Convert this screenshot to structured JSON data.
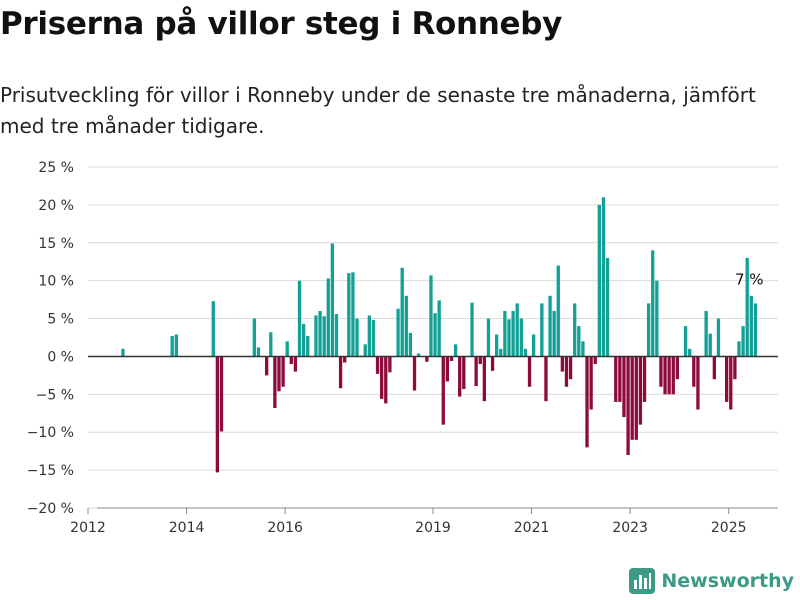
{
  "title": "Priserna på villor steg i Ronneby",
  "subtitle": "Prisutveckling för villor i Ronneby under de senaste tre månaderna, jämfört med tre månader tidigare.",
  "brand": "Newsworthy",
  "colors": {
    "positive": "#13a195",
    "negative": "#8c0a3c",
    "grid": "#dcdcdc",
    "zero": "#333333"
  },
  "chart_data": {
    "type": "bar",
    "x_unit": "month",
    "y_unit": "%",
    "ylim": [
      -20,
      25
    ],
    "yticks": [
      -20,
      -15,
      -10,
      -5,
      0,
      5,
      10,
      15,
      20,
      25
    ],
    "ytick_labels": [
      "−20 %",
      "−15 %",
      "−10 %",
      "−5 %",
      "0 %",
      "5 %",
      "10 %",
      "15 %",
      "20 %",
      "25 %"
    ],
    "xlim": [
      "2012-01",
      "2025-12"
    ],
    "xticks": [
      "2012-01",
      "2014-01",
      "2016-01",
      "2019-01",
      "2021-01",
      "2023-01",
      "2025-01"
    ],
    "xtick_labels": [
      "2012",
      "2014",
      "2016",
      "2019",
      "2021",
      "2023",
      "2025"
    ],
    "grid": true,
    "annotation": {
      "x": "2025-04",
      "text": "7 %"
    },
    "series": [
      {
        "values": [
          [
            "2012-09",
            1
          ],
          [
            "2013-09",
            2.7
          ],
          [
            "2013-10",
            2.9
          ],
          [
            "2014-07",
            7.3
          ],
          [
            "2014-08",
            -15.3
          ],
          [
            "2014-09",
            -9.9
          ],
          [
            "2015-05",
            5
          ],
          [
            "2015-06",
            1.2
          ],
          [
            "2015-08",
            -2.5
          ],
          [
            "2015-09",
            3.2
          ],
          [
            "2015-10",
            -6.8
          ],
          [
            "2015-11",
            -4.6
          ],
          [
            "2015-12",
            -4
          ],
          [
            "2016-01",
            2
          ],
          [
            "2016-02",
            -1
          ],
          [
            "2016-03",
            -2
          ],
          [
            "2016-04",
            10
          ],
          [
            "2016-05",
            4.3
          ],
          [
            "2016-06",
            2.7
          ],
          [
            "2016-08",
            5.4
          ],
          [
            "2016-09",
            6
          ],
          [
            "2016-10",
            5.3
          ],
          [
            "2016-11",
            10.3
          ],
          [
            "2016-12",
            14.9
          ],
          [
            "2017-01",
            5.6
          ],
          [
            "2017-02",
            -4.2
          ],
          [
            "2017-03",
            -0.8
          ],
          [
            "2017-04",
            11
          ],
          [
            "2017-05",
            11.1
          ],
          [
            "2017-06",
            5
          ],
          [
            "2017-07",
            0.1
          ],
          [
            "2017-08",
            1.6
          ],
          [
            "2017-09",
            5.4
          ],
          [
            "2017-10",
            4.8
          ],
          [
            "2017-11",
            -2.3
          ],
          [
            "2017-12",
            -5.6
          ],
          [
            "2018-01",
            -6.2
          ],
          [
            "2018-02",
            -2.1
          ],
          [
            "2018-04",
            6.3
          ],
          [
            "2018-05",
            11.7
          ],
          [
            "2018-06",
            8
          ],
          [
            "2018-07",
            3.1
          ],
          [
            "2018-08",
            -4.5
          ],
          [
            "2018-09",
            0.4
          ],
          [
            "2018-11",
            -0.7
          ],
          [
            "2018-12",
            10.7
          ],
          [
            "2019-01",
            5.7
          ],
          [
            "2019-02",
            7.4
          ],
          [
            "2019-03",
            -9
          ],
          [
            "2019-04",
            -3.3
          ],
          [
            "2019-05",
            -0.6
          ],
          [
            "2019-06",
            1.6
          ],
          [
            "2019-07",
            -5.3
          ],
          [
            "2019-08",
            -4.3
          ],
          [
            "2019-10",
            7.1
          ],
          [
            "2019-11",
            -3.9
          ],
          [
            "2019-12",
            -1
          ],
          [
            "2020-01",
            -5.9
          ],
          [
            "2020-02",
            5
          ],
          [
            "2020-03",
            -1.9
          ],
          [
            "2020-04",
            2.9
          ],
          [
            "2020-05",
            1
          ],
          [
            "2020-06",
            6
          ],
          [
            "2020-07",
            4.9
          ],
          [
            "2020-08",
            6
          ],
          [
            "2020-09",
            7
          ],
          [
            "2020-10",
            5
          ],
          [
            "2020-11",
            1
          ],
          [
            "2020-12",
            -4
          ],
          [
            "2021-01",
            2.9
          ],
          [
            "2021-03",
            7
          ],
          [
            "2021-04",
            -5.9
          ],
          [
            "2021-05",
            8
          ],
          [
            "2021-06",
            6
          ],
          [
            "2021-07",
            12
          ],
          [
            "2021-08",
            -2
          ],
          [
            "2021-09",
            -4
          ],
          [
            "2021-10",
            -3
          ],
          [
            "2021-11",
            7
          ],
          [
            "2021-12",
            4
          ],
          [
            "2022-01",
            2
          ],
          [
            "2022-02",
            -12
          ],
          [
            "2022-03",
            -7
          ],
          [
            "2022-04",
            -1
          ],
          [
            "2022-05",
            20
          ],
          [
            "2022-06",
            21
          ],
          [
            "2022-07",
            13
          ],
          [
            "2022-09",
            -6
          ],
          [
            "2022-10",
            -6
          ],
          [
            "2022-11",
            -8
          ],
          [
            "2022-12",
            -13
          ],
          [
            "2023-01",
            -11
          ],
          [
            "2023-02",
            -11
          ],
          [
            "2023-03",
            -9
          ],
          [
            "2023-04",
            -6
          ],
          [
            "2023-05",
            7
          ],
          [
            "2023-06",
            14
          ],
          [
            "2023-07",
            10
          ],
          [
            "2023-08",
            -4
          ],
          [
            "2023-09",
            -5
          ],
          [
            "2023-10",
            -5
          ],
          [
            "2023-11",
            -5
          ],
          [
            "2023-12",
            -3
          ],
          [
            "2024-02",
            4
          ],
          [
            "2024-03",
            1
          ],
          [
            "2024-04",
            -4
          ],
          [
            "2024-05",
            -7
          ],
          [
            "2024-07",
            6
          ],
          [
            "2024-08",
            3
          ],
          [
            "2024-09",
            -3
          ],
          [
            "2024-10",
            5
          ],
          [
            "2024-12",
            -6
          ],
          [
            "2025-01",
            -7
          ],
          [
            "2025-02",
            -3
          ],
          [
            "2025-03",
            2
          ],
          [
            "2025-04",
            4
          ],
          [
            "2025-05",
            13
          ],
          [
            "2025-06",
            8
          ],
          [
            "2025-07",
            7
          ]
        ]
      }
    ]
  }
}
